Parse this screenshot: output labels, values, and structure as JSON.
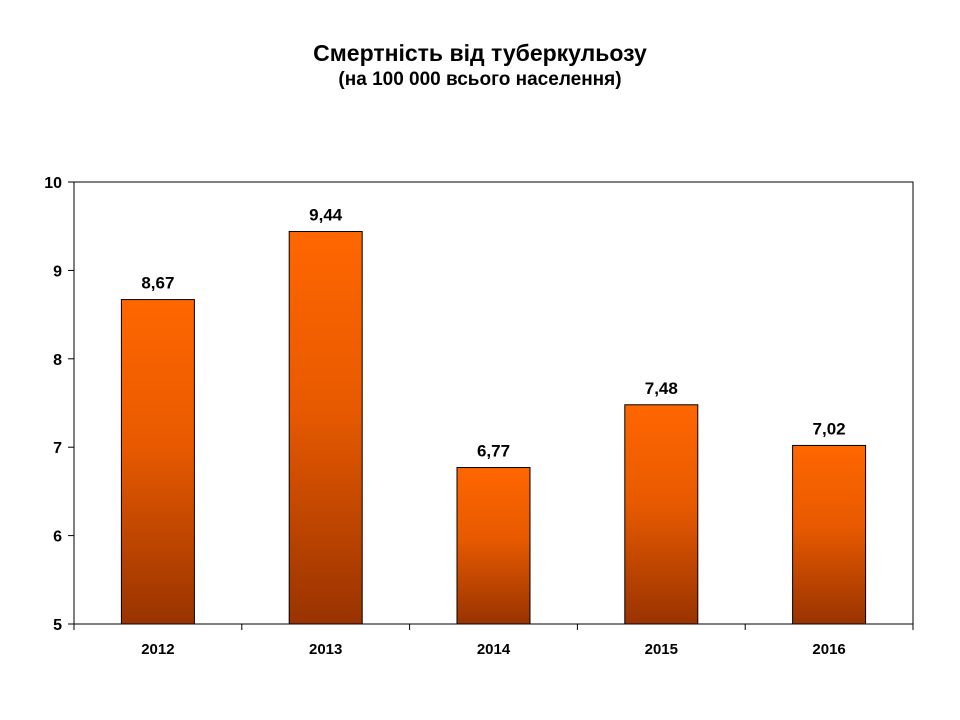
{
  "chart_data": {
    "type": "bar",
    "title": "Смертність від туберкульозу",
    "subtitle": "(на 100 000 всього населення)",
    "categories": [
      "2012",
      "2013",
      "2014",
      "2015",
      "2016"
    ],
    "values": [
      8.67,
      9.44,
      6.77,
      7.48,
      7.02
    ],
    "data_labels": [
      "8,67",
      "9,44",
      "6,77",
      "7,48",
      "7,02"
    ],
    "ylim": [
      5,
      10
    ],
    "yticks": [
      5,
      6,
      7,
      8,
      9,
      10
    ],
    "grid": false,
    "legend": "none",
    "colors": {
      "bar_top": "#ff6600",
      "bar_bottom": "#993300"
    }
  }
}
